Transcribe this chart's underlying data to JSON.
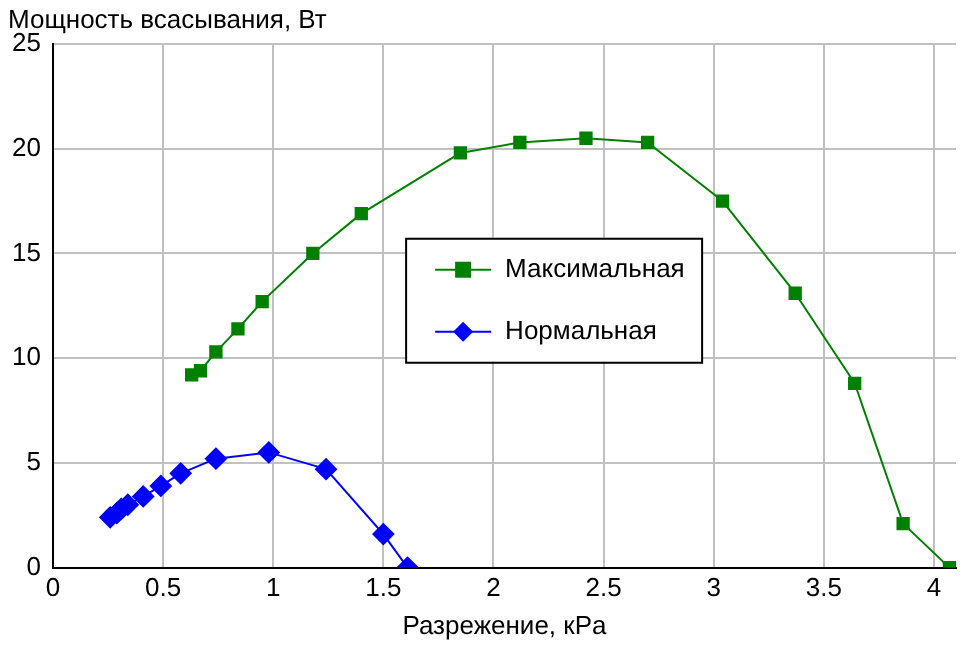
{
  "chart_data": {
    "type": "line",
    "ylabel": "Мощность всасывания, Вт",
    "xlabel": "Разрежение, кPa",
    "xlim": [
      0,
      4.1
    ],
    "xticks": [
      0,
      0.5,
      1,
      1.5,
      2,
      2.5,
      3,
      3.5,
      4
    ],
    "ylim": [
      0,
      25
    ],
    "yticks": [
      0,
      5,
      10,
      15,
      20,
      25
    ],
    "grid": true,
    "legend": "right",
    "series": [
      {
        "name": "Максимальная",
        "color": "#008000",
        "marker": "square",
        "x": [
          0.63,
          0.67,
          0.74,
          0.84,
          0.95,
          1.18,
          1.4,
          1.85,
          2.12,
          2.42,
          2.7,
          3.04,
          3.37,
          3.64,
          3.86,
          4.07
        ],
        "values": [
          9.2,
          9.4,
          10.3,
          11.4,
          12.7,
          15.0,
          16.9,
          19.8,
          20.3,
          20.5,
          20.3,
          17.5,
          13.1,
          8.8,
          2.1,
          0
        ]
      },
      {
        "name": "Нормальная",
        "color": "#0000ff",
        "marker": "diamond",
        "x": [
          0.26,
          0.29,
          0.31,
          0.34,
          0.41,
          0.49,
          0.58,
          0.74,
          0.98,
          1.24,
          1.5,
          1.61
        ],
        "values": [
          2.4,
          2.6,
          2.8,
          3.0,
          3.4,
          3.9,
          4.5,
          5.2,
          5.5,
          4.7,
          1.6,
          0
        ]
      }
    ]
  }
}
